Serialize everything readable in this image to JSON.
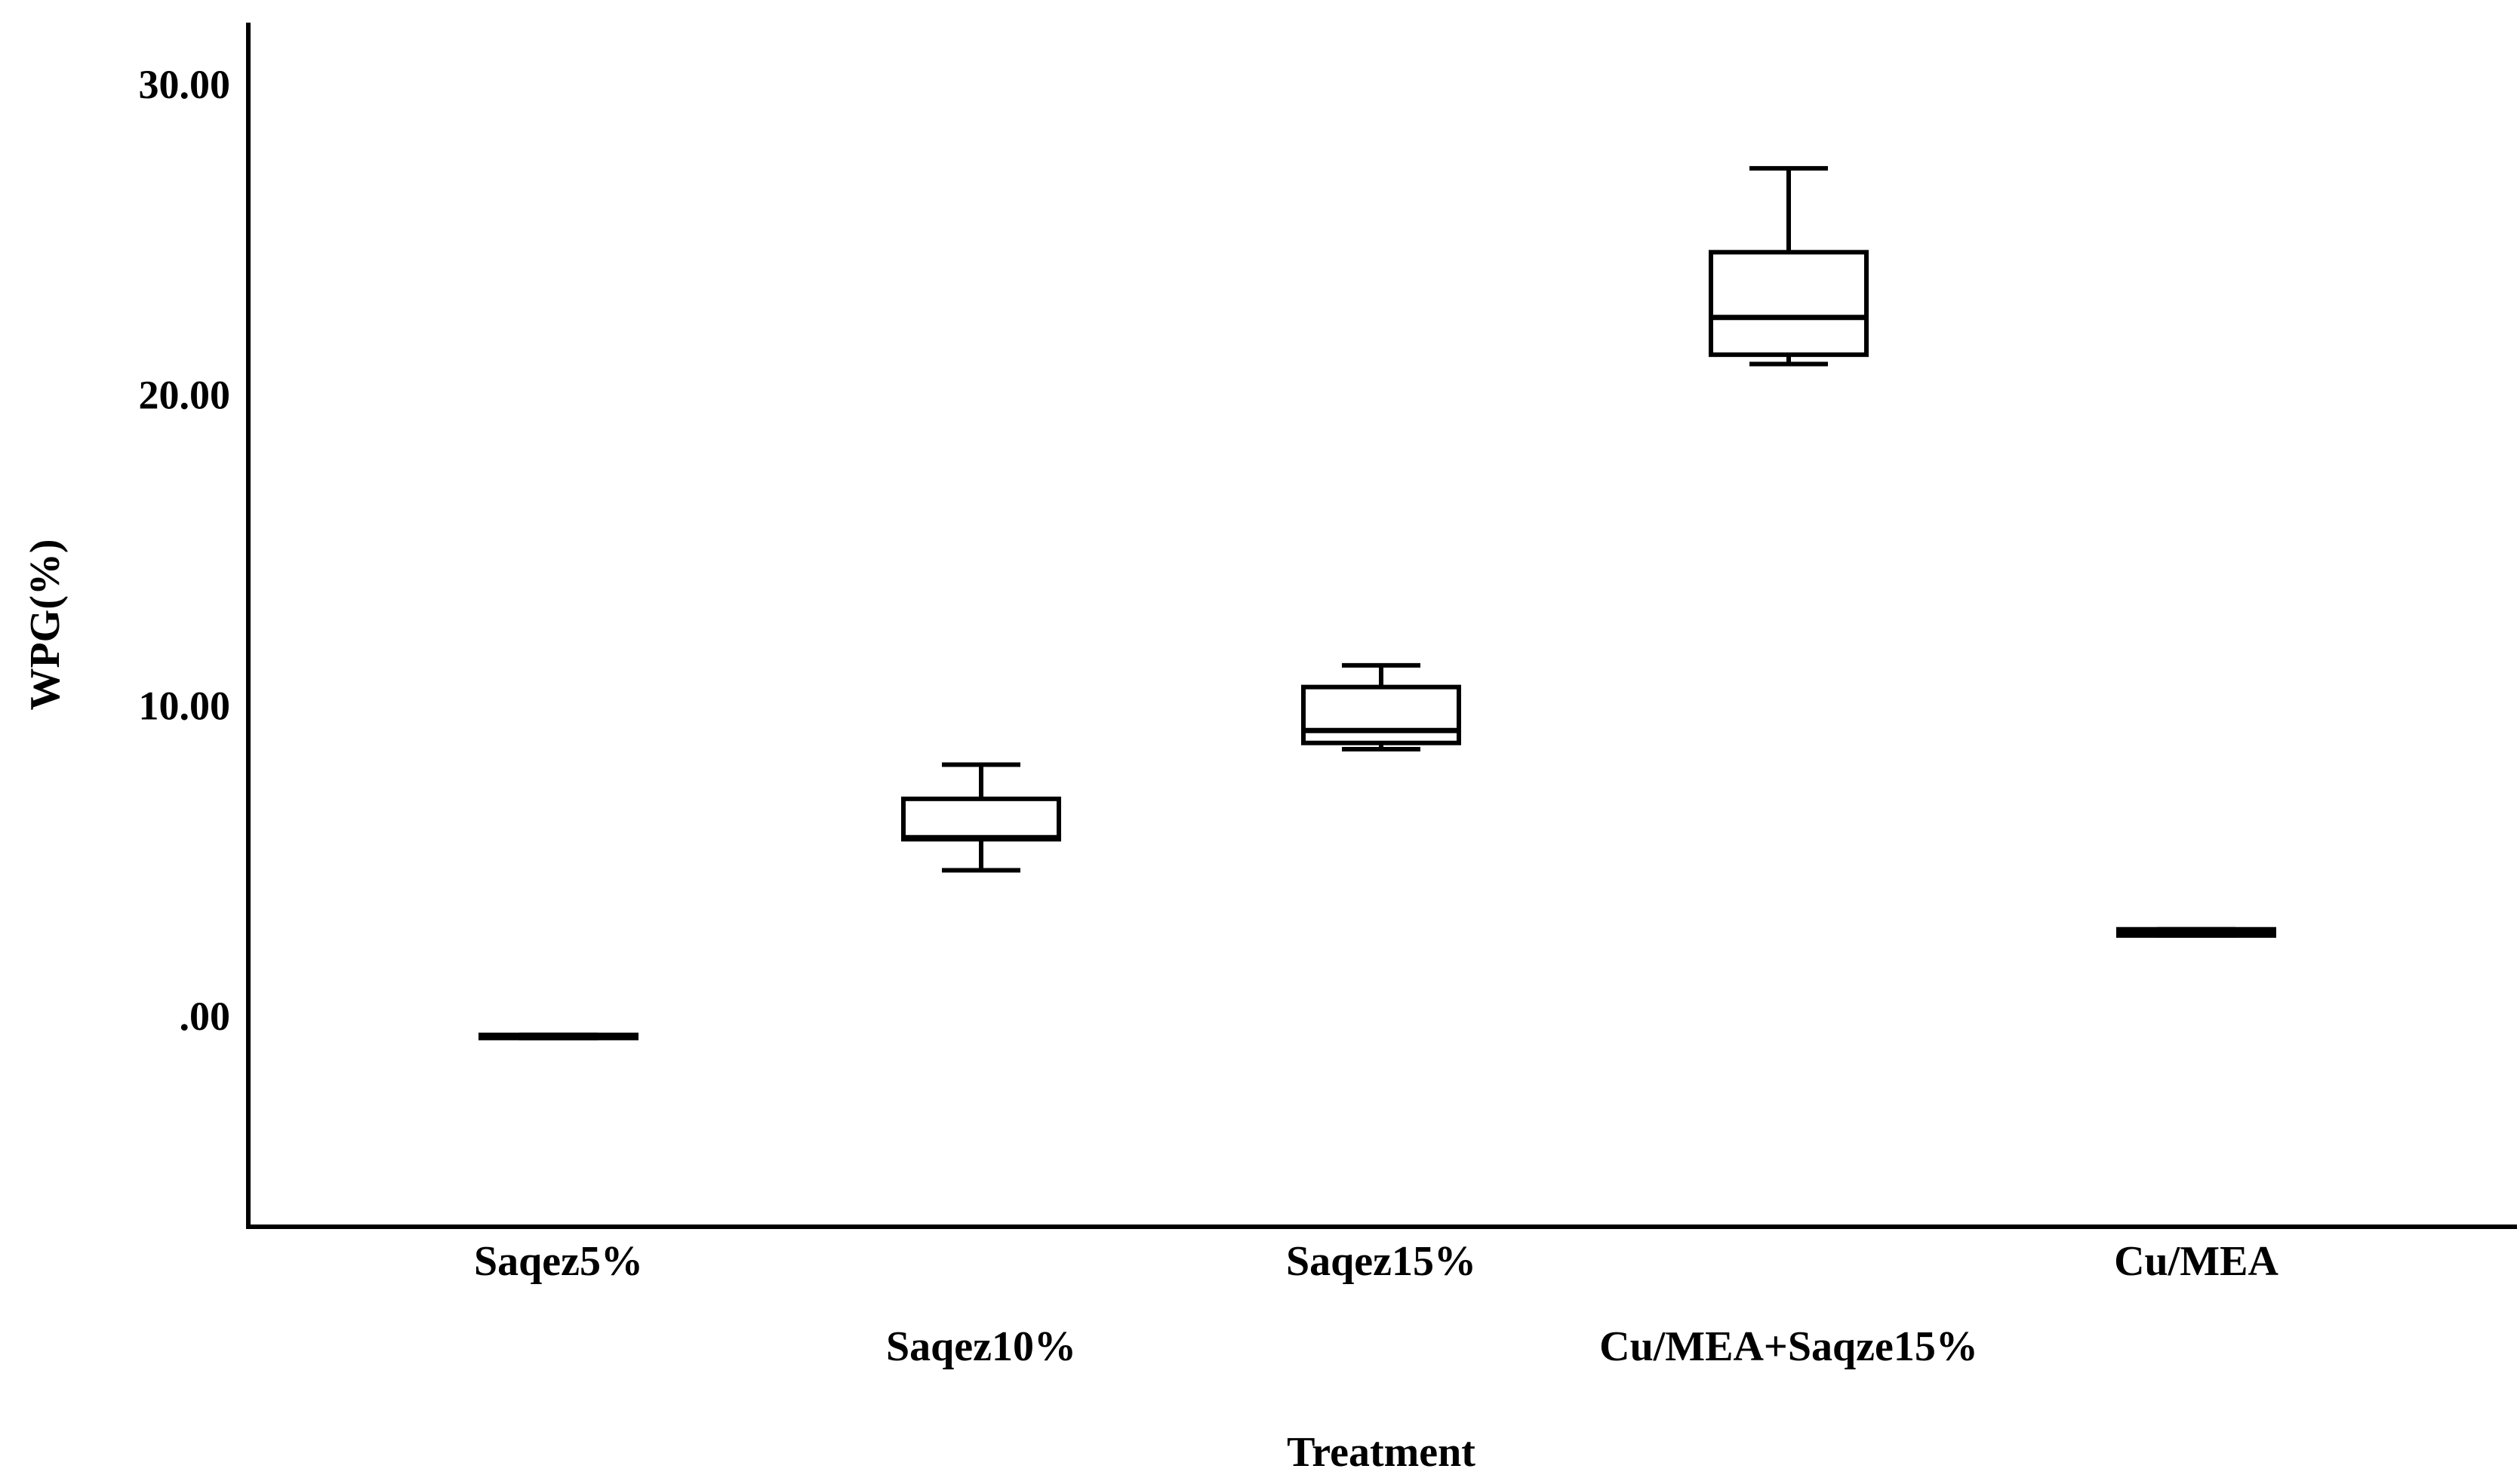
{
  "chart_data": {
    "type": "boxplot",
    "title": "",
    "xlabel": "Treatment",
    "ylabel": "WPG(%)",
    "ylim": [
      -6.5,
      32
    ],
    "yticks": [
      0,
      10,
      20,
      30
    ],
    "ytick_labels": [
      ".00",
      "10.00",
      "20.00",
      "30.00"
    ],
    "grid": false,
    "categories": [
      "Saqez5%",
      "Saqez10%",
      "Saqez15%",
      "Cu/MEA+Saqze15%",
      "Cu/MEA"
    ],
    "series": [
      {
        "name": "Saqez5%",
        "min": -0.7,
        "q1": -0.7,
        "median": -0.65,
        "q3": -0.6,
        "max": -0.6
      },
      {
        "name": "Saqez10%",
        "min": 4.7,
        "q1": 5.7,
        "median": 5.75,
        "q3": 7.0,
        "max": 8.1
      },
      {
        "name": "Saqez15%",
        "min": 8.6,
        "q1": 8.8,
        "median": 9.2,
        "q3": 10.6,
        "max": 11.3
      },
      {
        "name": "Cu/MEA+Saqze15%",
        "min": 21.0,
        "q1": 21.3,
        "median": 22.5,
        "q3": 24.6,
        "max": 27.3
      },
      {
        "name": "Cu/MEA",
        "min": 2.6,
        "q1": 2.6,
        "median": 2.7,
        "q3": 2.8,
        "max": 2.8
      }
    ]
  }
}
